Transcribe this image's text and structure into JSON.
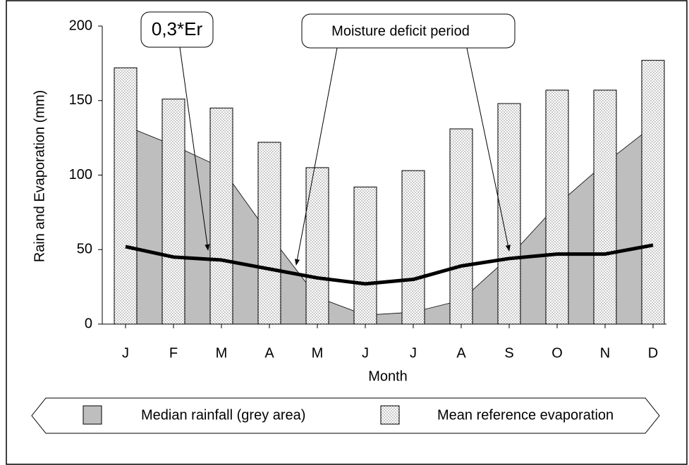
{
  "chart_data": {
    "type": "bar",
    "y_label": "Rain and Evaporation (mm)",
    "x_label": "Month",
    "categories": [
      "J",
      "F",
      "M",
      "A",
      "M",
      "J",
      "J",
      "A",
      "S",
      "O",
      "N",
      "D"
    ],
    "series": [
      {
        "name": "Median rainfall (grey area)",
        "type": "area",
        "color": "#bebebe",
        "values": [
          133,
          120,
          105,
          60,
          18,
          6,
          8,
          16,
          45,
          80,
          108,
          133
        ]
      },
      {
        "name": "Mean reference evaporation",
        "type": "bar",
        "color": "#9a9a9a",
        "values": [
          172,
          151,
          145,
          122,
          105,
          92,
          103,
          131,
          148,
          157,
          157,
          177
        ]
      },
      {
        "name": "0,3*Er",
        "type": "line",
        "color": "#000000",
        "values": [
          52,
          45,
          43,
          37,
          31,
          27,
          30,
          39,
          44,
          47,
          47,
          53
        ]
      }
    ],
    "annotations": [
      "Moisture deficit period"
    ],
    "ylim": [
      0,
      200
    ],
    "yticks": [
      0,
      50,
      100,
      150,
      200
    ]
  }
}
